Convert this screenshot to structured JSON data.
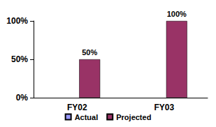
{
  "chart_data": {
    "type": "bar",
    "categories": [
      "FY02",
      "FY03"
    ],
    "series": [
      {
        "name": "Actual",
        "color": "#9999ff",
        "values": [
          null,
          null
        ]
      },
      {
        "name": "Projected",
        "color": "#993366",
        "values": [
          50,
          100
        ],
        "value_labels": [
          "50%",
          "100%"
        ]
      }
    ],
    "ylim": [
      0,
      100
    ],
    "yticks": [
      {
        "value": 0,
        "label": "0%"
      },
      {
        "value": 50,
        "label": "50%"
      },
      {
        "value": 100,
        "label": "100%"
      }
    ],
    "grid": false,
    "legend": "bottom",
    "data_labels": true
  }
}
